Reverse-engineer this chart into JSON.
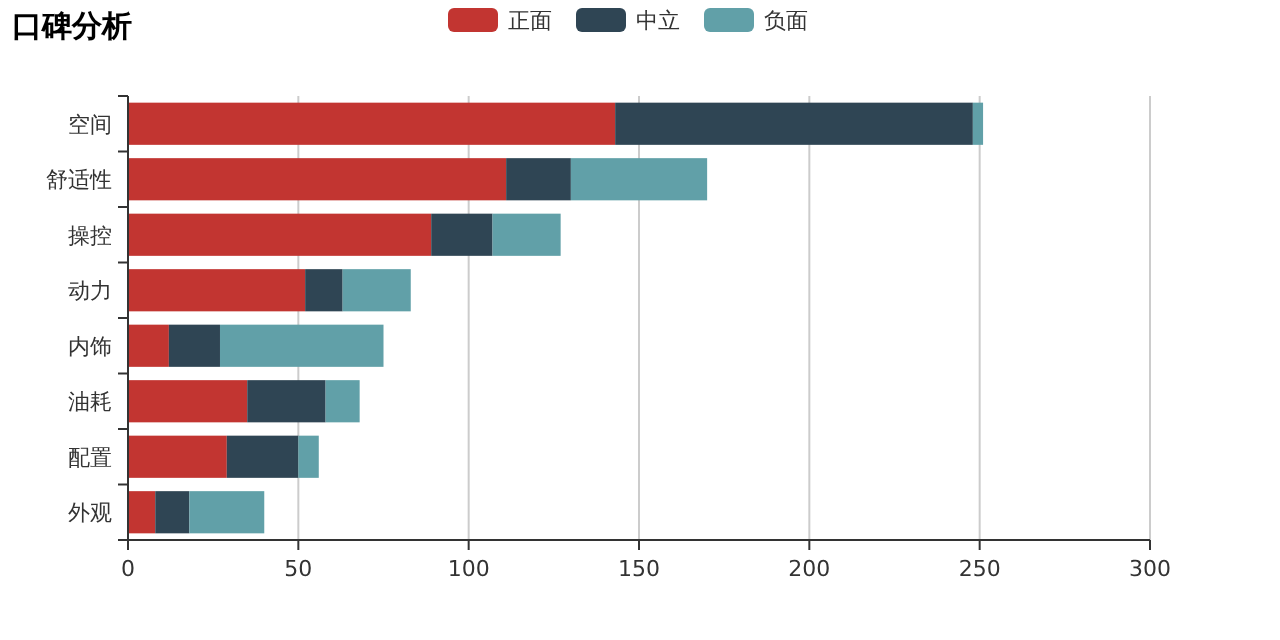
{
  "chart_data": {
    "type": "bar",
    "title": "口碑分析",
    "orientation": "horizontal",
    "stacked": true,
    "categories": [
      "空间",
      "舒适性",
      "操控",
      "动力",
      "内饰",
      "油耗",
      "配置",
      "外观"
    ],
    "series": [
      {
        "name": "正面",
        "color": "#c23531",
        "values": [
          143,
          111,
          89,
          52,
          12,
          35,
          29,
          8
        ]
      },
      {
        "name": "中立",
        "color": "#2f4554",
        "values": [
          105,
          19,
          18,
          11,
          15,
          23,
          21,
          10
        ]
      },
      {
        "name": "负面",
        "color": "#61a0a8",
        "values": [
          3,
          40,
          20,
          20,
          48,
          10,
          6,
          22
        ]
      }
    ],
    "xlim": [
      0,
      300
    ],
    "xticks": [
      0,
      50,
      100,
      150,
      200,
      250,
      300
    ],
    "grid": "x",
    "legend": "top"
  }
}
